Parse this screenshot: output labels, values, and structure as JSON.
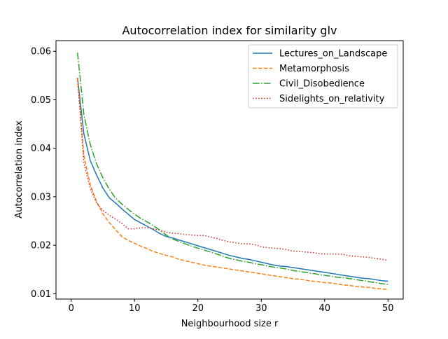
{
  "chart_data": {
    "type": "line",
    "title": "Autocorrelation index for similarity glv",
    "xlabel": "Neighbourhood size r",
    "ylabel": "Autocorrelation index",
    "xlim": [
      -2.4,
      52.4
    ],
    "ylim": [
      0.0089,
      0.0622
    ],
    "xticks": [
      0,
      10,
      20,
      30,
      40,
      50
    ],
    "xtick_labels": [
      "0",
      "10",
      "20",
      "30",
      "40",
      "50"
    ],
    "yticks": [
      0.01,
      0.02,
      0.03,
      0.04,
      0.05,
      0.06
    ],
    "ytick_labels": [
      "0.01",
      "0.02",
      "0.03",
      "0.04",
      "0.05",
      "0.06"
    ],
    "grid": false,
    "legend_position": "top-right",
    "series": [
      {
        "name": "Lectures_on_Landscape",
        "color": "#1f77b4",
        "dash": "solid",
        "x": [
          1,
          2,
          3,
          4,
          5,
          6,
          7,
          8,
          9,
          10,
          11,
          12,
          13,
          14,
          15,
          16,
          17,
          18,
          19,
          20,
          21,
          22,
          23,
          24,
          25,
          26,
          27,
          28,
          29,
          30,
          31,
          32,
          33,
          34,
          35,
          36,
          37,
          38,
          39,
          40,
          41,
          42,
          43,
          44,
          45,
          46,
          47,
          48,
          49,
          50
        ],
        "y": [
          0.0545,
          0.043,
          0.0375,
          0.0345,
          0.0318,
          0.0298,
          0.0287,
          0.0275,
          0.0264,
          0.0253,
          0.0246,
          0.0239,
          0.0232,
          0.0224,
          0.0218,
          0.0215,
          0.0211,
          0.0207,
          0.0203,
          0.0199,
          0.0195,
          0.0191,
          0.0187,
          0.0183,
          0.0179,
          0.0176,
          0.0173,
          0.0171,
          0.0168,
          0.0165,
          0.0162,
          0.0159,
          0.0157,
          0.0156,
          0.0154,
          0.0152,
          0.015,
          0.0148,
          0.0146,
          0.0144,
          0.0142,
          0.014,
          0.0138,
          0.0136,
          0.0134,
          0.0132,
          0.0131,
          0.0129,
          0.0127,
          0.0126
        ]
      },
      {
        "name": "Metamorphosis",
        "color": "#ff7f0e",
        "dash": "dashed",
        "x": [
          1,
          2,
          3,
          4,
          5,
          6,
          7,
          8,
          9,
          10,
          11,
          12,
          13,
          14,
          15,
          16,
          17,
          18,
          19,
          20,
          21,
          22,
          23,
          24,
          25,
          26,
          27,
          28,
          29,
          30,
          31,
          32,
          33,
          34,
          35,
          36,
          37,
          38,
          39,
          40,
          41,
          42,
          43,
          44,
          45,
          46,
          47,
          48,
          49,
          50
        ],
        "y": [
          0.0545,
          0.0385,
          0.0325,
          0.029,
          0.0265,
          0.0247,
          0.0232,
          0.0218,
          0.021,
          0.0204,
          0.0198,
          0.0193,
          0.0187,
          0.0183,
          0.0179,
          0.0176,
          0.0171,
          0.0168,
          0.0165,
          0.0162,
          0.0159,
          0.0157,
          0.0155,
          0.0153,
          0.0151,
          0.0149,
          0.0147,
          0.0145,
          0.0143,
          0.0141,
          0.0139,
          0.0137,
          0.0135,
          0.0133,
          0.0131,
          0.013,
          0.0128,
          0.0126,
          0.0125,
          0.0123,
          0.0122,
          0.012,
          0.0118,
          0.0117,
          0.0115,
          0.0114,
          0.0113,
          0.0111,
          0.011,
          0.0109
        ]
      },
      {
        "name": "Civil_Disobedience",
        "color": "#2ca02c",
        "dash": "dashdot",
        "x": [
          1,
          2,
          3,
          4,
          5,
          6,
          7,
          8,
          9,
          10,
          11,
          12,
          13,
          14,
          15,
          16,
          17,
          18,
          19,
          20,
          21,
          22,
          23,
          24,
          25,
          26,
          27,
          28,
          29,
          30,
          31,
          32,
          33,
          34,
          35,
          36,
          37,
          38,
          39,
          40,
          41,
          42,
          43,
          44,
          45,
          46,
          47,
          48,
          49,
          50
        ],
        "y": [
          0.0597,
          0.047,
          0.0408,
          0.0368,
          0.0339,
          0.0316,
          0.0297,
          0.0285,
          0.0274,
          0.0264,
          0.0255,
          0.0248,
          0.024,
          0.0231,
          0.0221,
          0.0213,
          0.0208,
          0.0203,
          0.0198,
          0.0194,
          0.019,
          0.0186,
          0.0182,
          0.0177,
          0.0173,
          0.017,
          0.0167,
          0.0165,
          0.0162,
          0.016,
          0.0157,
          0.0155,
          0.0153,
          0.0151,
          0.0148,
          0.0146,
          0.0144,
          0.0142,
          0.014,
          0.0138,
          0.0136,
          0.0134,
          0.0133,
          0.0131,
          0.0129,
          0.0127,
          0.0125,
          0.0123,
          0.0121,
          0.0119
        ]
      },
      {
        "name": "Sidelights_on_relativity",
        "color": "#d62728",
        "dash": "dotted",
        "x": [
          1,
          2,
          3,
          4,
          5,
          6,
          7,
          8,
          9,
          10,
          11,
          12,
          13,
          14,
          15,
          16,
          17,
          18,
          19,
          20,
          21,
          22,
          23,
          24,
          25,
          26,
          27,
          28,
          29,
          30,
          31,
          32,
          33,
          34,
          35,
          36,
          37,
          38,
          39,
          40,
          41,
          42,
          43,
          44,
          45,
          46,
          47,
          48,
          49,
          50
        ],
        "y": [
          0.0545,
          0.037,
          0.0318,
          0.0287,
          0.0272,
          0.0262,
          0.0254,
          0.0245,
          0.0234,
          0.0234,
          0.0236,
          0.0236,
          0.0234,
          0.0231,
          0.0227,
          0.0225,
          0.0224,
          0.0222,
          0.0221,
          0.022,
          0.022,
          0.0217,
          0.0214,
          0.021,
          0.0207,
          0.0205,
          0.0203,
          0.0203,
          0.0201,
          0.0197,
          0.0195,
          0.0194,
          0.0193,
          0.0191,
          0.0188,
          0.0187,
          0.0186,
          0.0185,
          0.0183,
          0.0182,
          0.0182,
          0.0182,
          0.0181,
          0.0178,
          0.0177,
          0.0176,
          0.0175,
          0.0173,
          0.0171,
          0.0169
        ]
      }
    ]
  }
}
